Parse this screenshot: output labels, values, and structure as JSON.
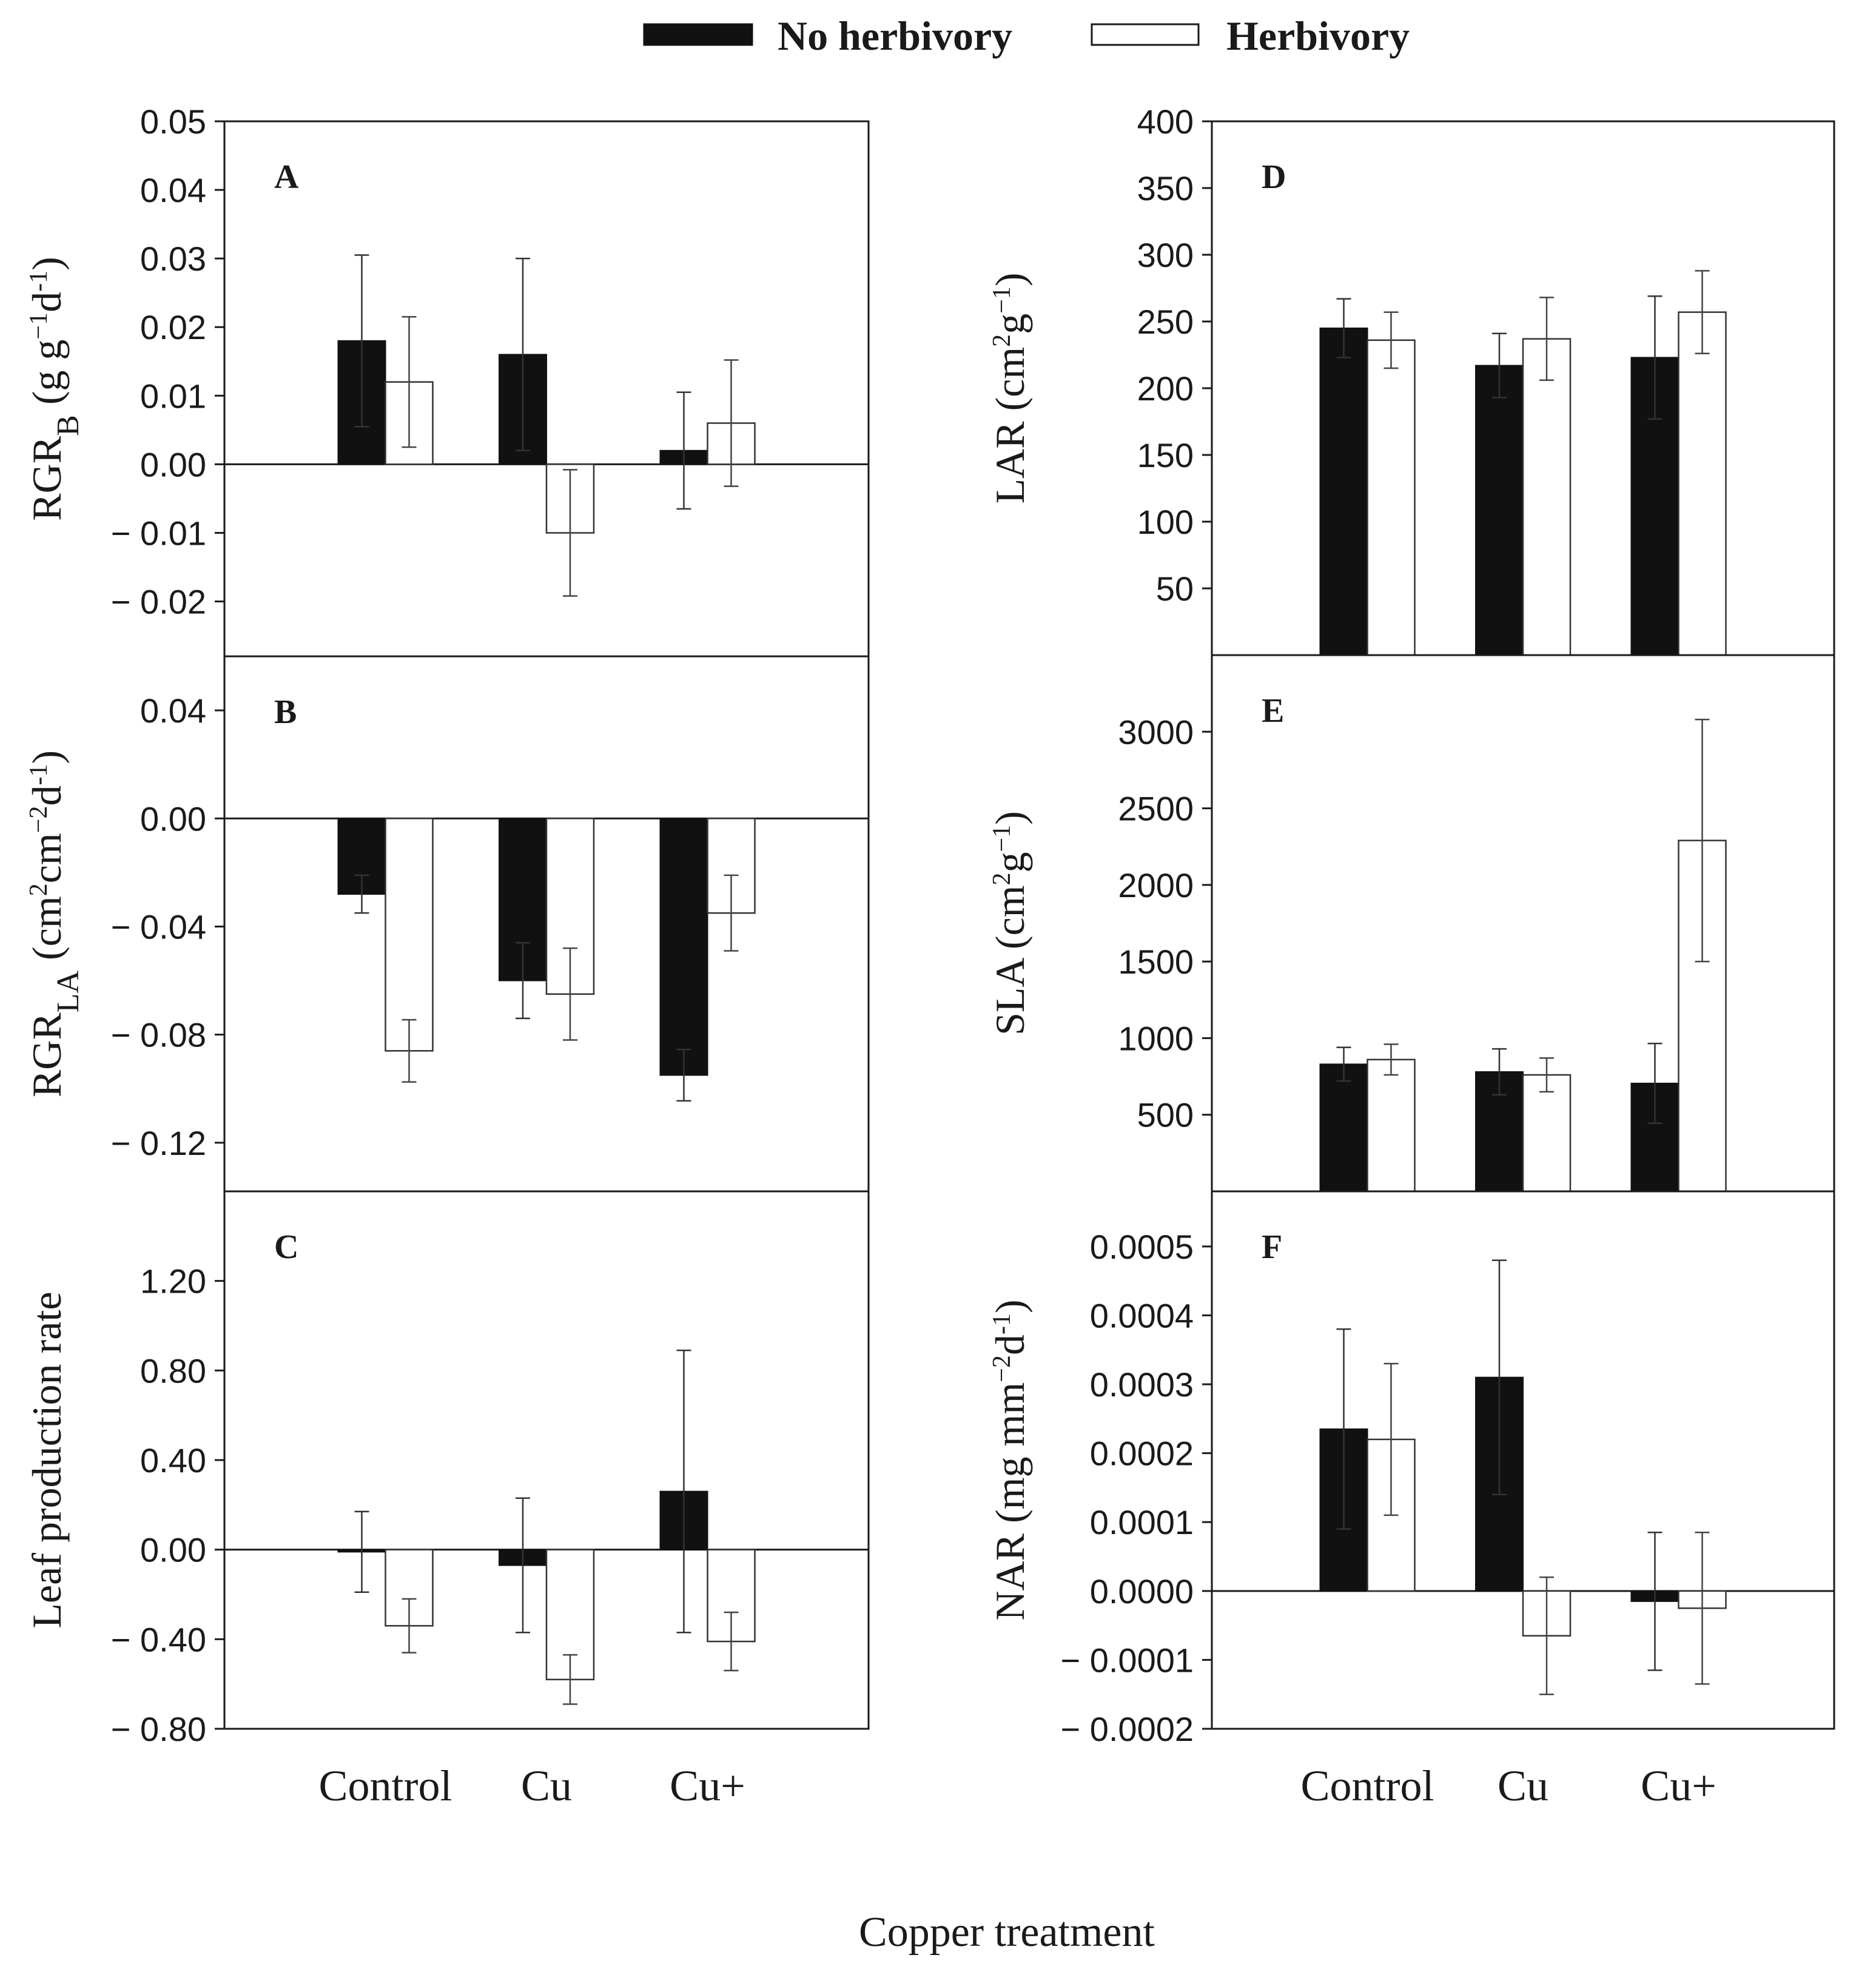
{
  "legend": {
    "no_herbivory": "No herbivory",
    "herbivory": "Herbivory"
  },
  "x_axis_title": "Copper treatment",
  "colors": {
    "no_herbivory_fill": "#111111",
    "herbivory_fill": "#ffffff",
    "axis": "#1a1a1a"
  },
  "chart_data": [
    {
      "panel": "A",
      "type": "bar",
      "categories": [
        "Control",
        "Cu",
        "Cu+"
      ],
      "ylabel_parts": [
        [
          "RGR",
          ""
        ],
        [
          "B",
          "sub"
        ],
        [
          " (g g",
          ""
        ],
        [
          "−1",
          "sup"
        ],
        [
          "d",
          ""
        ],
        [
          "-1",
          "sup"
        ],
        [
          ")",
          ""
        ]
      ],
      "ylim": [
        -0.028,
        0.05
      ],
      "ticks": [
        -0.02,
        -0.01,
        0.0,
        0.01,
        0.02,
        0.03,
        0.04,
        0.05
      ],
      "tick_labels": [
        "− 0.02",
        "− 0.01",
        "0.00",
        "0.01",
        "0.02",
        "0.03",
        "0.04",
        "0.05"
      ],
      "series": [
        {
          "name": "No herbivory",
          "values": [
            0.018,
            0.016,
            0.002
          ],
          "err": [
            0.0125,
            0.014,
            0.0085
          ]
        },
        {
          "name": "Herbivory",
          "values": [
            0.012,
            -0.01,
            0.006
          ],
          "err": [
            0.0095,
            0.0092,
            0.0092
          ]
        }
      ]
    },
    {
      "panel": "B",
      "type": "bar",
      "categories": [
        "Control",
        "Cu",
        "Cu+"
      ],
      "ylabel_parts": [
        [
          "RGR",
          ""
        ],
        [
          "LA",
          "sub"
        ],
        [
          " (cm",
          ""
        ],
        [
          "2",
          "sup"
        ],
        [
          "cm",
          ""
        ],
        [
          "−2",
          "sup"
        ],
        [
          "d",
          ""
        ],
        [
          "-1",
          "sup"
        ],
        [
          ")",
          ""
        ]
      ],
      "ylim": [
        -0.138,
        0.06
      ],
      "ticks": [
        -0.12,
        -0.08,
        -0.04,
        0.0,
        0.04
      ],
      "tick_labels": [
        "− 0.12",
        "− 0.08",
        "− 0.04",
        "0.00",
        "0.04"
      ],
      "series": [
        {
          "name": "No herbivory",
          "values": [
            -0.028,
            -0.06,
            -0.095
          ],
          "err": [
            0.007,
            0.014,
            0.0095
          ]
        },
        {
          "name": "Herbivory",
          "values": [
            -0.086,
            -0.065,
            -0.035
          ],
          "err": [
            0.0115,
            0.017,
            0.014
          ]
        }
      ]
    },
    {
      "panel": "C",
      "type": "bar",
      "categories": [
        "Control",
        "Cu",
        "Cu+"
      ],
      "ylabel_parts": [
        [
          "Leaf production rate",
          ""
        ]
      ],
      "ylim": [
        -0.8,
        1.6
      ],
      "ticks": [
        -0.8,
        -0.4,
        0.0,
        0.4,
        0.8,
        1.2
      ],
      "tick_labels": [
        "− 0.80",
        "− 0.40",
        "0.00",
        "0.40",
        "0.80",
        "1.20"
      ],
      "series": [
        {
          "name": "No herbivory",
          "values": [
            -0.01,
            -0.07,
            0.26
          ],
          "err": [
            0.18,
            0.3,
            0.63
          ]
        },
        {
          "name": "Herbivory",
          "values": [
            -0.34,
            -0.58,
            -0.41
          ],
          "err": [
            0.12,
            0.11,
            0.13
          ]
        }
      ]
    },
    {
      "panel": "D",
      "type": "bar",
      "categories": [
        "Control",
        "Cu",
        "Cu+"
      ],
      "ylabel_parts": [
        [
          "LAR (cm",
          ""
        ],
        [
          "2",
          "sup"
        ],
        [
          "g",
          ""
        ],
        [
          "−1",
          "sup"
        ],
        [
          ")",
          ""
        ]
      ],
      "ylim": [
        0,
        400
      ],
      "ticks": [
        50,
        100,
        150,
        200,
        250,
        300,
        350,
        400
      ],
      "tick_labels": [
        "50",
        "100",
        "150",
        "200",
        "250",
        "300",
        "350",
        "400"
      ],
      "series": [
        {
          "name": "No herbivory",
          "values": [
            245,
            217,
            223
          ],
          "err": [
            22,
            24,
            46
          ]
        },
        {
          "name": "Herbivory",
          "values": [
            236,
            237,
            257
          ],
          "err": [
            21,
            31,
            31
          ]
        }
      ]
    },
    {
      "panel": "E",
      "type": "bar",
      "categories": [
        "Control",
        "Cu",
        "Cu+"
      ],
      "ylabel_parts": [
        [
          "SLA (cm",
          ""
        ],
        [
          "2",
          "sup"
        ],
        [
          "g",
          ""
        ],
        [
          "−1",
          "sup"
        ],
        [
          ")",
          ""
        ]
      ],
      "ylim": [
        0,
        3500
      ],
      "ticks": [
        500,
        1000,
        1500,
        2000,
        2500,
        3000
      ],
      "tick_labels": [
        "500",
        "1000",
        "1500",
        "2000",
        "2500",
        "3000"
      ],
      "series": [
        {
          "name": "No herbivory",
          "values": [
            830,
            780,
            705
          ],
          "err": [
            110,
            150,
            260
          ]
        },
        {
          "name": "Herbivory",
          "values": [
            860,
            760,
            2290
          ],
          "err": [
            100,
            110,
            790
          ]
        }
      ]
    },
    {
      "panel": "F",
      "type": "bar",
      "categories": [
        "Control",
        "Cu",
        "Cu+"
      ],
      "ylabel_parts": [
        [
          "NAR (mg mm",
          ""
        ],
        [
          "−2",
          "sup"
        ],
        [
          "d",
          ""
        ],
        [
          "-1",
          "sup"
        ],
        [
          ")",
          ""
        ]
      ],
      "ylim": [
        -0.0002,
        0.00058
      ],
      "ticks": [
        -0.0002,
        -0.0001,
        0.0,
        0.0001,
        0.0002,
        0.0003,
        0.0004,
        0.0005
      ],
      "tick_labels": [
        "− 0.0002",
        "− 0.0001",
        "0.0000",
        "0.0001",
        "0.0002",
        "0.0003",
        "0.0004",
        "0.0005"
      ],
      "series": [
        {
          "name": "No herbivory",
          "values": [
            0.000235,
            0.00031,
            -1.5e-05
          ],
          "err": [
            0.000145,
            0.00017,
            0.0001
          ]
        },
        {
          "name": "Herbivory",
          "values": [
            0.00022,
            -6.5e-05,
            -2.5e-05
          ],
          "err": [
            0.00011,
            8.5e-05,
            0.00011
          ]
        }
      ]
    }
  ]
}
